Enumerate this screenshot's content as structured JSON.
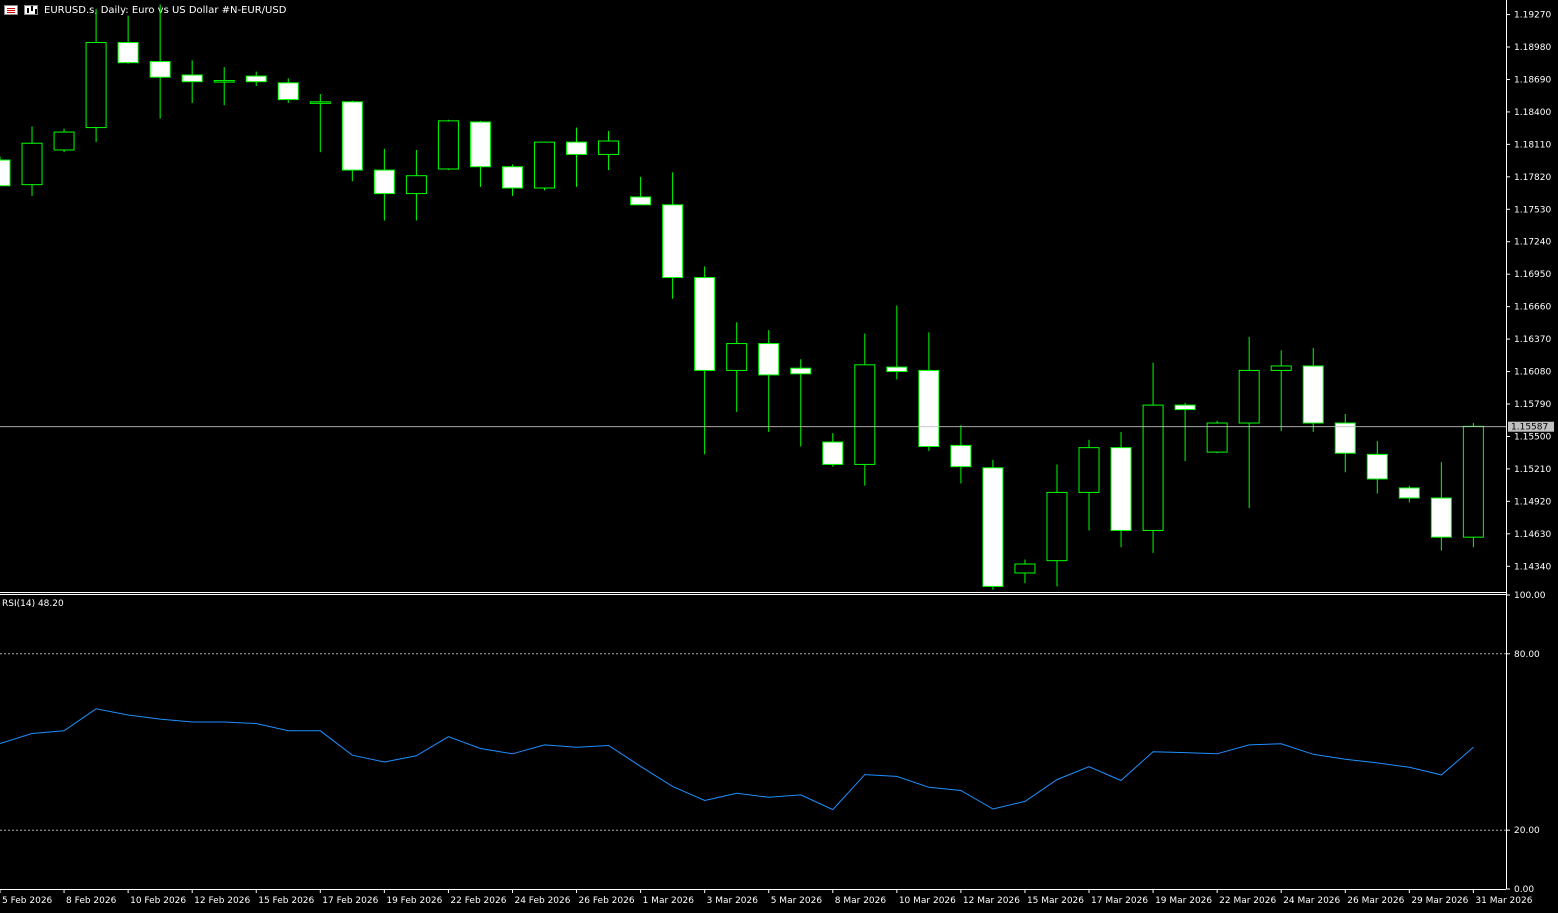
{
  "header": {
    "symbol_title": "EURUSD.s, Daily:  Euro vs US Dollar #N-EUR/USD",
    "icons": [
      "list-icon",
      "chart-icon"
    ]
  },
  "rsi_panel": {
    "label": "RSI(14) 48.20"
  },
  "colors": {
    "background": "#000000",
    "bull_body": "#000000",
    "bear_body": "#ffffff",
    "candle_outline": "#00ff00",
    "rsi_line": "#1e90ff",
    "axis": "#ffffff",
    "price_line": "#c0c0c0",
    "level_line": "#aaaaaa"
  },
  "chart_data": [
    {
      "type": "candlestick",
      "symbol": "EURUSD.s",
      "timeframe": "Daily",
      "ylim": [
        1.1411,
        1.194
      ],
      "y_ticks": [
        "1.19270",
        "1.18980",
        "1.18690",
        "1.18400",
        "1.18110",
        "1.17820",
        "1.17530",
        "1.17240",
        "1.16950",
        "1.16660",
        "1.16370",
        "1.16080",
        "1.15790",
        "1.15500",
        "1.15210",
        "1.14920",
        "1.14630",
        "1.14340"
      ],
      "current_price": "1.15587",
      "x_labels": [
        "5 Feb 2026",
        "8 Feb 2026",
        "10 Feb 2026",
        "12 Feb 2026",
        "15 Feb 2026",
        "17 Feb 2026",
        "19 Feb 2026",
        "22 Feb 2026",
        "24 Feb 2026",
        "26 Feb 2026",
        "1 Mar 2026",
        "3 Mar 2026",
        "5 Mar 2026",
        "8 Mar 2026",
        "10 Mar 2026",
        "12 Mar 2026",
        "15 Mar 2026",
        "17 Mar 2026",
        "19 Mar 2026",
        "22 Mar 2026",
        "24 Mar 2026",
        "26 Mar 2026",
        "29 Mar 2026",
        "31 Mar 2026"
      ],
      "candles": [
        {
          "o": 1.1797,
          "h": 1.18,
          "l": 1.1774,
          "c": 1.1774
        },
        {
          "o": 1.1775,
          "h": 1.1827,
          "l": 1.1765,
          "c": 1.1812
        },
        {
          "o": 1.1806,
          "h": 1.1825,
          "l": 1.1804,
          "c": 1.1822
        },
        {
          "o": 1.1826,
          "h": 1.1932,
          "l": 1.1813,
          "c": 1.1902
        },
        {
          "o": 1.1902,
          "h": 1.1926,
          "l": 1.1883,
          "c": 1.1884
        },
        {
          "o": 1.1885,
          "h": 1.1936,
          "l": 1.1834,
          "c": 1.1871
        },
        {
          "o": 1.1873,
          "h": 1.1886,
          "l": 1.1848,
          "c": 1.1867
        },
        {
          "o": 1.1868,
          "h": 1.188,
          "l": 1.1846,
          "c": 1.1868
        },
        {
          "o": 1.1872,
          "h": 1.1876,
          "l": 1.1863,
          "c": 1.1867
        },
        {
          "o": 1.1866,
          "h": 1.187,
          "l": 1.1848,
          "c": 1.1851
        },
        {
          "o": 1.1849,
          "h": 1.1856,
          "l": 1.1804,
          "c": 1.1849
        },
        {
          "o": 1.1849,
          "h": 1.185,
          "l": 1.1778,
          "c": 1.1788
        },
        {
          "o": 1.1788,
          "h": 1.1807,
          "l": 1.1743,
          "c": 1.1767
        },
        {
          "o": 1.1767,
          "h": 1.1806,
          "l": 1.1743,
          "c": 1.1783
        },
        {
          "o": 1.1789,
          "h": 1.1833,
          "l": 1.1788,
          "c": 1.1832
        },
        {
          "o": 1.1831,
          "h": 1.1832,
          "l": 1.1773,
          "c": 1.1791
        },
        {
          "o": 1.1791,
          "h": 1.1793,
          "l": 1.1765,
          "c": 1.1772
        },
        {
          "o": 1.1772,
          "h": 1.1813,
          "l": 1.177,
          "c": 1.1813
        },
        {
          "o": 1.1813,
          "h": 1.1826,
          "l": 1.1773,
          "c": 1.1802
        },
        {
          "o": 1.1802,
          "h": 1.1823,
          "l": 1.1788,
          "c": 1.1814
        },
        {
          "o": 1.1764,
          "h": 1.1782,
          "l": 1.1758,
          "c": 1.1757
        },
        {
          "o": 1.1757,
          "h": 1.1786,
          "l": 1.1673,
          "c": 1.1692
        },
        {
          "o": 1.1692,
          "h": 1.1702,
          "l": 1.1534,
          "c": 1.1609
        },
        {
          "o": 1.1609,
          "h": 1.1652,
          "l": 1.1572,
          "c": 1.1633
        },
        {
          "o": 1.1633,
          "h": 1.1645,
          "l": 1.1554,
          "c": 1.1605
        },
        {
          "o": 1.1611,
          "h": 1.1619,
          "l": 1.1541,
          "c": 1.1606
        },
        {
          "o": 1.1545,
          "h": 1.1553,
          "l": 1.1523,
          "c": 1.1525
        },
        {
          "o": 1.1525,
          "h": 1.1642,
          "l": 1.1506,
          "c": 1.1614
        },
        {
          "o": 1.1612,
          "h": 1.1667,
          "l": 1.1601,
          "c": 1.1608
        },
        {
          "o": 1.1609,
          "h": 1.1643,
          "l": 1.1537,
          "c": 1.1541
        },
        {
          "o": 1.1542,
          "h": 1.156,
          "l": 1.1508,
          "c": 1.1523
        },
        {
          "o": 1.1522,
          "h": 1.1529,
          "l": 1.1413,
          "c": 1.1416
        },
        {
          "o": 1.1428,
          "h": 1.144,
          "l": 1.1419,
          "c": 1.1436
        },
        {
          "o": 1.1439,
          "h": 1.1525,
          "l": 1.1416,
          "c": 1.15
        },
        {
          "o": 1.15,
          "h": 1.1547,
          "l": 1.1466,
          "c": 1.154
        },
        {
          "o": 1.154,
          "h": 1.1554,
          "l": 1.1451,
          "c": 1.1466
        },
        {
          "o": 1.1466,
          "h": 1.1616,
          "l": 1.1446,
          "c": 1.1578
        },
        {
          "o": 1.1578,
          "h": 1.158,
          "l": 1.1528,
          "c": 1.1574
        },
        {
          "o": 1.1536,
          "h": 1.1564,
          "l": 1.1535,
          "c": 1.1562
        },
        {
          "o": 1.1562,
          "h": 1.1639,
          "l": 1.1486,
          "c": 1.1609
        },
        {
          "o": 1.1609,
          "h": 1.1627,
          "l": 1.1555,
          "c": 1.1613
        },
        {
          "o": 1.1613,
          "h": 1.1629,
          "l": 1.1554,
          "c": 1.1562
        },
        {
          "o": 1.1562,
          "h": 1.157,
          "l": 1.1518,
          "c": 1.1535
        },
        {
          "o": 1.1534,
          "h": 1.1546,
          "l": 1.1499,
          "c": 1.1512
        },
        {
          "o": 1.1504,
          "h": 1.1506,
          "l": 1.1491,
          "c": 1.1495
        },
        {
          "o": 1.1495,
          "h": 1.1527,
          "l": 1.1448,
          "c": 1.146
        },
        {
          "o": 1.146,
          "h": 1.1562,
          "l": 1.1451,
          "c": 1.1559
        }
      ]
    },
    {
      "type": "line",
      "name": "RSI(14)",
      "ylim": [
        0,
        100
      ],
      "y_ticks": [
        "100.00",
        "80.00",
        "20.00",
        "0.00"
      ],
      "levels": [
        80,
        20
      ],
      "values": [
        49.5,
        52.9,
        53.8,
        61.3,
        59.2,
        57.8,
        56.8,
        56.8,
        56.3,
        53.8,
        53.8,
        45.5,
        43.2,
        45.3,
        51.8,
        47.8,
        46.0,
        49.0,
        48.2,
        48.8,
        41.7,
        34.9,
        30.1,
        32.6,
        31.2,
        32.0,
        27.0,
        38.9,
        38.3,
        34.6,
        33.5,
        27.2,
        29.8,
        37.2,
        41.6,
        36.9,
        46.7,
        46.4,
        46.0,
        49.0,
        49.4,
        45.8,
        44.1,
        42.9,
        41.4,
        38.8,
        48.2
      ]
    }
  ]
}
